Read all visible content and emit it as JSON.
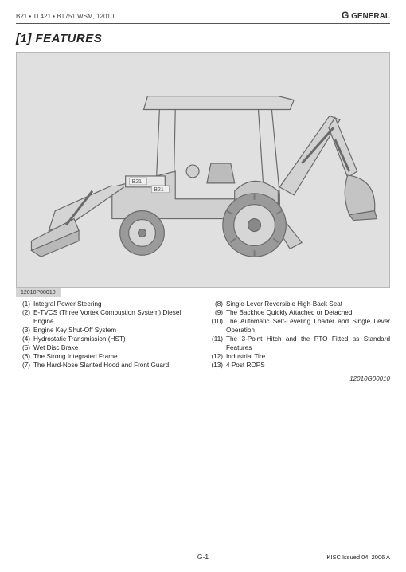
{
  "header": {
    "model_line": "B21 • TL421 • BT751 WSM, 12010",
    "section_prefix": "G",
    "section_name": "GENERAL"
  },
  "title": "[1]  FEATURES",
  "figure": {
    "id_label": "12010P00010",
    "bg": "#e0e0e0",
    "stroke": "#6a6a6a",
    "fill": "#cfcfcf",
    "dark": "#888888",
    "badge1": "B21",
    "badge2": "B21"
  },
  "features_left": [
    {
      "n": "(1)",
      "t": "Integral Power Steering"
    },
    {
      "n": "(2)",
      "t": "E-TVCS (Three Vortex Combustion System) Diesel Engine"
    },
    {
      "n": "(3)",
      "t": "Engine Key Shut-Off System"
    },
    {
      "n": "(4)",
      "t": "Hydrostatic Transmission (HST)"
    },
    {
      "n": "(5)",
      "t": "Wet Disc Brake"
    },
    {
      "n": "(6)",
      "t": "The Strong Integrated Frame"
    },
    {
      "n": "(7)",
      "t": "The Hard-Nose Slanted Hood and Front Guard"
    }
  ],
  "features_right": [
    {
      "n": "(8)",
      "t": "Single-Lever Reversible High-Back Seat"
    },
    {
      "n": "(9)",
      "t": "The Backhoe Quickly Attached or Detached"
    },
    {
      "n": "(10)",
      "t": "The Automatic Self-Leveling Loader and Single Lever Operation"
    },
    {
      "n": "(11)",
      "t": "The 3-Point Hitch and the PTO Fitted as Standard Features"
    },
    {
      "n": "(12)",
      "t": "Industrial Tire"
    },
    {
      "n": "(13)",
      "t": "4 Post ROPS"
    }
  ],
  "ref_id": "12010G00010",
  "page_number": "G-1",
  "issued": "KISC Issued 04, 2006 A"
}
